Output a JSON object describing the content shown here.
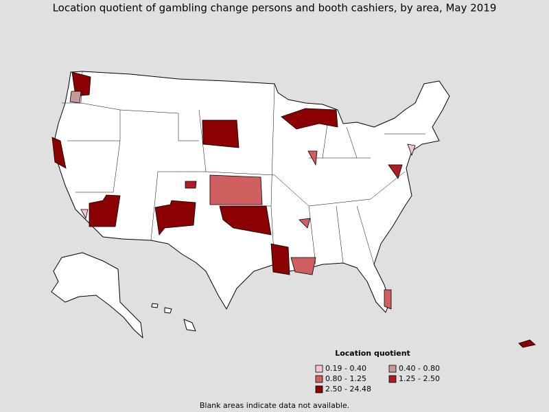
{
  "title": "Location quotient of gambling change persons and booth cashiers, by area, May 2019",
  "legend": {
    "title": "Location quotient",
    "items": [
      {
        "label": "0.19 - 0.40",
        "color": "#f7c6cc"
      },
      {
        "label": "0.40 - 0.80",
        "color": "#c79a9a"
      },
      {
        "label": "0.80 - 1.25",
        "color": "#d06060"
      },
      {
        "label": "1.25 - 2.50",
        "color": "#b01c24"
      },
      {
        "label": "2.50 - 24.48",
        "color": "#8b0000"
      }
    ]
  },
  "footnote": "Blank areas indicate data not available."
}
